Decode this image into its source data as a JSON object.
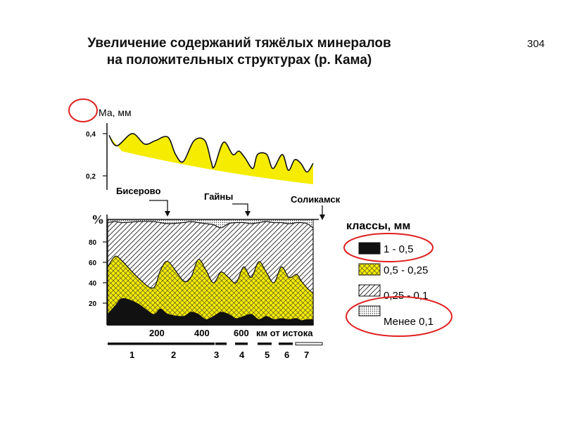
{
  "header": {
    "title_line1": "Увеличение содержаний тяжёлых минералов",
    "title_line2": "на положительных структурах (р. Кама)",
    "page_number": "304"
  },
  "chart_data": [
    {
      "type": "area",
      "ylabel": "Ма, мм",
      "yticks": [
        "0,4",
        "0,2"
      ],
      "ylim": [
        0.15,
        0.5
      ],
      "x": [
        0,
        25,
        75,
        115,
        150,
        190,
        215,
        240,
        275,
        310,
        330,
        340,
        370,
        400,
        420,
        440,
        465,
        480,
        510,
        530,
        560,
        580,
        600,
        620,
        640,
        660
      ],
      "series": [
        {
          "values": [
            0.43,
            0.37,
            0.44,
            0.38,
            0.4,
            0.42,
            0.32,
            0.28,
            0.4,
            0.4,
            0.28,
            0.25,
            0.39,
            0.32,
            0.34,
            0.3,
            0.24,
            0.32,
            0.32,
            0.24,
            0.32,
            0.23,
            0.29,
            0.27,
            0.22,
            0.27
          ]
        }
      ]
    },
    {
      "type": "area",
      "ylabel": "%",
      "yticks": [
        "80",
        "60",
        "40",
        "20"
      ],
      "xticks": [
        "200",
        "400",
        "600"
      ],
      "xlabel": "км от истока",
      "ylim": [
        0,
        100
      ],
      "xlim": [
        0,
        680
      ],
      "x": [
        0,
        25,
        50,
        100,
        150,
        175,
        200,
        250,
        275,
        300,
        325,
        350,
        375,
        400,
        425,
        450,
        475,
        500,
        525,
        550,
        575,
        600,
        625,
        640,
        660,
        680
      ],
      "series": [
        {
          "name": "1 - 0,5",
          "values": [
            10,
            18,
            25,
            20,
            10,
            15,
            10,
            8,
            12,
            10,
            5,
            8,
            12,
            10,
            6,
            8,
            10,
            5,
            8,
            5,
            6,
            5,
            6,
            4,
            5,
            5
          ]
        },
        {
          "name": "0,5 - 0,25",
          "values": [
            55,
            65,
            60,
            45,
            35,
            52,
            60,
            42,
            45,
            62,
            52,
            40,
            50,
            45,
            40,
            55,
            45,
            60,
            50,
            40,
            55,
            45,
            48,
            42,
            35,
            30
          ]
        },
        {
          "name": "0,25 - 0,1",
          "values": [
            97,
            98,
            97,
            98,
            98,
            97,
            96,
            97,
            98,
            97,
            96,
            95,
            92,
            96,
            97,
            97,
            96,
            97,
            98,
            97,
            97,
            96,
            97,
            97,
            96,
            92
          ]
        },
        {
          "name": "Менее 0,1",
          "values": [
            100,
            100,
            100,
            100,
            100,
            100,
            100,
            100,
            100,
            100,
            100,
            100,
            100,
            100,
            100,
            100,
            100,
            100,
            100,
            100,
            100,
            100,
            100,
            100,
            100,
            100
          ]
        }
      ],
      "locations": [
        {
          "name": "Бисерово",
          "x": 230
        },
        {
          "name": "Гайны",
          "x": 460
        },
        {
          "name": "Соликамск",
          "x": 665
        }
      ],
      "segment_labels": [
        "1",
        "2",
        "3",
        "4",
        "5",
        "6",
        "7"
      ]
    }
  ],
  "legend": {
    "title": "классы, мм",
    "items": [
      {
        "label": "1 - 0,5",
        "fill": "solid-black"
      },
      {
        "label": "0,5 - 0,25",
        "fill": "yellow-crosshatch"
      },
      {
        "label": "0,25 - 0,1",
        "fill": "diagonal-hatch"
      },
      {
        "label": "Менее 0,1",
        "fill": "dotted"
      }
    ]
  },
  "colors": {
    "yellow": "#f5ec00",
    "black": "#111111",
    "annotation_red": "#e02020"
  }
}
